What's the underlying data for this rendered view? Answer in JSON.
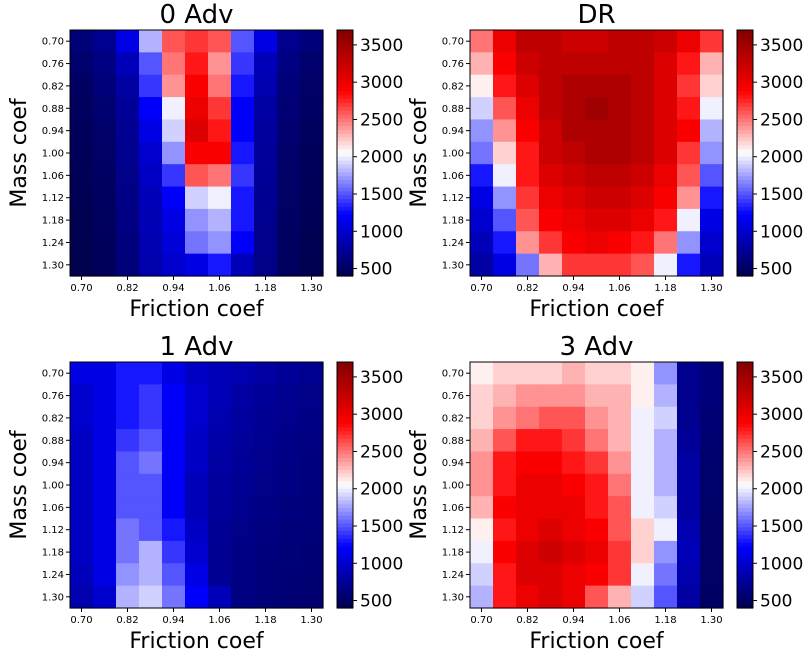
{
  "chart_data": [
    {
      "type": "heatmap",
      "title": "0 Adv",
      "xlabel": "Friction coef",
      "ylabel": "Mass coef",
      "x_ticks": [
        "0.70",
        "0.82",
        "0.94",
        "1.06",
        "1.18",
        "1.30"
      ],
      "y_ticks": [
        "0.70",
        "0.76",
        "0.82",
        "0.88",
        "0.94",
        "1.00",
        "1.06",
        "1.12",
        "1.18",
        "1.24",
        "1.30"
      ],
      "rows": [
        "0.70",
        "0.76",
        "0.82",
        "0.88",
        "0.94",
        "1.00",
        "1.06",
        "1.12",
        "1.18",
        "1.24",
        "1.30"
      ],
      "cols": [
        "0.70",
        "0.76",
        "0.82",
        "0.88",
        "0.94",
        "1.00",
        "1.06",
        "1.12",
        "1.18",
        "1.24",
        "1.30"
      ],
      "values": [
        [
          600,
          700,
          1100,
          1800,
          2600,
          2700,
          2600,
          1500,
          1100,
          700,
          600
        ],
        [
          550,
          650,
          900,
          1500,
          2500,
          2800,
          2400,
          1400,
          900,
          650,
          550
        ],
        [
          500,
          600,
          800,
          1400,
          2400,
          2900,
          2500,
          1300,
          850,
          600,
          520
        ],
        [
          480,
          560,
          750,
          1200,
          2000,
          3000,
          2700,
          1200,
          800,
          580,
          500
        ],
        [
          460,
          540,
          720,
          1100,
          1900,
          3100,
          2800,
          1200,
          780,
          560,
          480
        ],
        [
          450,
          520,
          700,
          1000,
          1700,
          2900,
          2900,
          1300,
          760,
          540,
          470
        ],
        [
          440,
          500,
          680,
          950,
          1400,
          2600,
          2500,
          1400,
          740,
          520,
          460
        ],
        [
          430,
          490,
          660,
          900,
          1200,
          1900,
          2000,
          1300,
          720,
          510,
          450
        ],
        [
          420,
          480,
          640,
          880,
          1100,
          1700,
          1800,
          1300,
          700,
          500,
          440
        ],
        [
          410,
          470,
          620,
          860,
          1050,
          1600,
          1700,
          1200,
          690,
          490,
          430
        ],
        [
          400,
          460,
          600,
          840,
          1000,
          1100,
          1300,
          900,
          680,
          480,
          420
        ]
      ],
      "colorbar": {
        "min": 400,
        "max": 3700,
        "ticks": [
          500,
          1000,
          1500,
          2000,
          2500,
          3000,
          3500
        ],
        "cmap": "seismic"
      }
    },
    {
      "type": "heatmap",
      "title": "DR",
      "xlabel": "Friction coef",
      "ylabel": "Mass coef",
      "x_ticks": [
        "0.70",
        "0.82",
        "0.94",
        "1.06",
        "1.18",
        "1.30"
      ],
      "y_ticks": [
        "0.70",
        "0.76",
        "0.82",
        "0.88",
        "0.94",
        "1.00",
        "1.06",
        "1.12",
        "1.18",
        "1.24",
        "1.30"
      ],
      "rows": [
        "0.70",
        "0.76",
        "0.82",
        "0.88",
        "0.94",
        "1.00",
        "1.06",
        "1.12",
        "1.18",
        "1.24",
        "1.30"
      ],
      "cols": [
        "0.70",
        "0.76",
        "0.82",
        "0.88",
        "0.94",
        "1.00",
        "1.06",
        "1.12",
        "1.18",
        "1.24",
        "1.30"
      ],
      "values": [
        [
          2500,
          3000,
          3300,
          3300,
          3200,
          3200,
          3300,
          3300,
          3200,
          3000,
          2700
        ],
        [
          2300,
          2900,
          3200,
          3300,
          3300,
          3300,
          3300,
          3300,
          3100,
          2800,
          2300
        ],
        [
          2100,
          2800,
          3100,
          3300,
          3400,
          3400,
          3400,
          3300,
          3100,
          2700,
          2200
        ],
        [
          1900,
          2600,
          3000,
          3300,
          3400,
          3500,
          3400,
          3300,
          3100,
          2800,
          2000
        ],
        [
          1700,
          2400,
          2900,
          3200,
          3400,
          3400,
          3400,
          3300,
          3100,
          2900,
          1800
        ],
        [
          1600,
          2200,
          2800,
          3200,
          3300,
          3400,
          3400,
          3300,
          3100,
          2700,
          1700
        ],
        [
          1300,
          2000,
          2800,
          3100,
          3200,
          3300,
          3300,
          3200,
          3000,
          2600,
          1500
        ],
        [
          1100,
          1700,
          2700,
          3000,
          3100,
          3200,
          3200,
          3100,
          2900,
          2400,
          1300
        ],
        [
          1000,
          1500,
          2600,
          2900,
          3000,
          3100,
          3100,
          3000,
          2800,
          2000,
          1100
        ],
        [
          900,
          1300,
          2400,
          2700,
          2900,
          3000,
          2900,
          2800,
          2500,
          1700,
          1000
        ],
        [
          800,
          1100,
          1600,
          2300,
          2700,
          2700,
          2700,
          2600,
          2000,
          1300,
          900
        ]
      ],
      "colorbar": {
        "min": 400,
        "max": 3700,
        "ticks": [
          500,
          1000,
          1500,
          2000,
          2500,
          3000,
          3500
        ],
        "cmap": "seismic"
      }
    },
    {
      "type": "heatmap",
      "title": "1 Adv",
      "xlabel": "Friction coef",
      "ylabel": "Mass coef",
      "x_ticks": [
        "0.70",
        "0.82",
        "0.94",
        "1.06",
        "1.18",
        "1.30"
      ],
      "y_ticks": [
        "0.70",
        "0.76",
        "0.82",
        "0.88",
        "0.94",
        "1.00",
        "1.06",
        "1.12",
        "1.18",
        "1.24",
        "1.30"
      ],
      "rows": [
        "0.70",
        "0.76",
        "0.82",
        "0.88",
        "0.94",
        "1.00",
        "1.06",
        "1.12",
        "1.18",
        "1.24",
        "1.30"
      ],
      "cols": [
        "0.70",
        "0.76",
        "0.82",
        "0.88",
        "0.94",
        "1.00",
        "1.06",
        "1.12",
        "1.18",
        "1.24",
        "1.30"
      ],
      "values": [
        [
          1100,
          1100,
          1300,
          1300,
          1100,
          950,
          900,
          850,
          800,
          750,
          700
        ],
        [
          1000,
          1100,
          1300,
          1400,
          1200,
          1000,
          900,
          800,
          750,
          700,
          680
        ],
        [
          1000,
          1100,
          1300,
          1400,
          1200,
          1000,
          850,
          780,
          730,
          690,
          660
        ],
        [
          950,
          1100,
          1400,
          1500,
          1200,
          950,
          820,
          760,
          700,
          670,
          640
        ],
        [
          950,
          1100,
          1500,
          1600,
          1200,
          950,
          800,
          740,
          690,
          660,
          630
        ],
        [
          950,
          1100,
          1500,
          1500,
          1200,
          900,
          780,
          720,
          680,
          650,
          620
        ],
        [
          950,
          1100,
          1500,
          1500,
          1200,
          900,
          760,
          700,
          660,
          630,
          610
        ],
        [
          950,
          1100,
          1600,
          1500,
          1300,
          950,
          740,
          680,
          640,
          610,
          600
        ],
        [
          950,
          1100,
          1600,
          1800,
          1400,
          1000,
          720,
          660,
          620,
          600,
          580
        ],
        [
          900,
          1100,
          1700,
          1800,
          1500,
          1100,
          720,
          650,
          610,
          590,
          570
        ],
        [
          850,
          1000,
          1800,
          1900,
          1600,
          1200,
          900,
          640,
          600,
          580,
          560
        ]
      ],
      "colorbar": {
        "min": 400,
        "max": 3700,
        "ticks": [
          500,
          1000,
          1500,
          2000,
          2500,
          3000,
          3500
        ],
        "cmap": "seismic"
      }
    },
    {
      "type": "heatmap",
      "title": "3 Adv",
      "xlabel": "Friction coef",
      "ylabel": "Mass coef",
      "x_ticks": [
        "0.70",
        "0.82",
        "0.94",
        "1.06",
        "1.18",
        "1.30"
      ],
      "y_ticks": [
        "0.70",
        "0.76",
        "0.82",
        "0.88",
        "0.94",
        "1.00",
        "1.06",
        "1.12",
        "1.18",
        "1.24",
        "1.30"
      ],
      "rows": [
        "0.70",
        "0.76",
        "0.82",
        "0.88",
        "0.94",
        "1.00",
        "1.06",
        "1.12",
        "1.18",
        "1.24",
        "1.30"
      ],
      "cols": [
        "0.70",
        "0.76",
        "0.82",
        "0.88",
        "0.94",
        "1.00",
        "1.06",
        "1.12",
        "1.18",
        "1.24",
        "1.30"
      ],
      "values": [
        [
          2100,
          2200,
          2200,
          2200,
          2300,
          2200,
          2200,
          2100,
          1700,
          700,
          600
        ],
        [
          2200,
          2300,
          2400,
          2400,
          2400,
          2300,
          2300,
          2100,
          1800,
          700,
          600
        ],
        [
          2200,
          2400,
          2500,
          2600,
          2600,
          2400,
          2300,
          2000,
          1900,
          700,
          580
        ],
        [
          2300,
          2600,
          2800,
          2800,
          2700,
          2500,
          2300,
          2000,
          1800,
          750,
          560
        ],
        [
          2400,
          2800,
          2900,
          2900,
          2800,
          2700,
          2400,
          2000,
          1800,
          800,
          550
        ],
        [
          2400,
          2800,
          3000,
          3000,
          2900,
          2800,
          2500,
          2000,
          1800,
          800,
          540
        ],
        [
          2300,
          2900,
          3000,
          3000,
          3000,
          2800,
          2600,
          2000,
          1900,
          800,
          530
        ],
        [
          2100,
          2800,
          3000,
          3100,
          3000,
          2900,
          2600,
          2200,
          2000,
          850,
          520
        ],
        [
          2000,
          2900,
          3100,
          3200,
          3100,
          3000,
          2700,
          2200,
          1700,
          900,
          520
        ],
        [
          1900,
          2800,
          3100,
          3100,
          3000,
          2900,
          2700,
          2000,
          1600,
          850,
          510
        ],
        [
          1800,
          2800,
          3000,
          3100,
          3000,
          2600,
          2300,
          1900,
          1500,
          800,
          500
        ]
      ],
      "colorbar": {
        "min": 400,
        "max": 3700,
        "ticks": [
          500,
          1000,
          1500,
          2000,
          2500,
          3000,
          3500
        ],
        "cmap": "seismic"
      }
    }
  ]
}
